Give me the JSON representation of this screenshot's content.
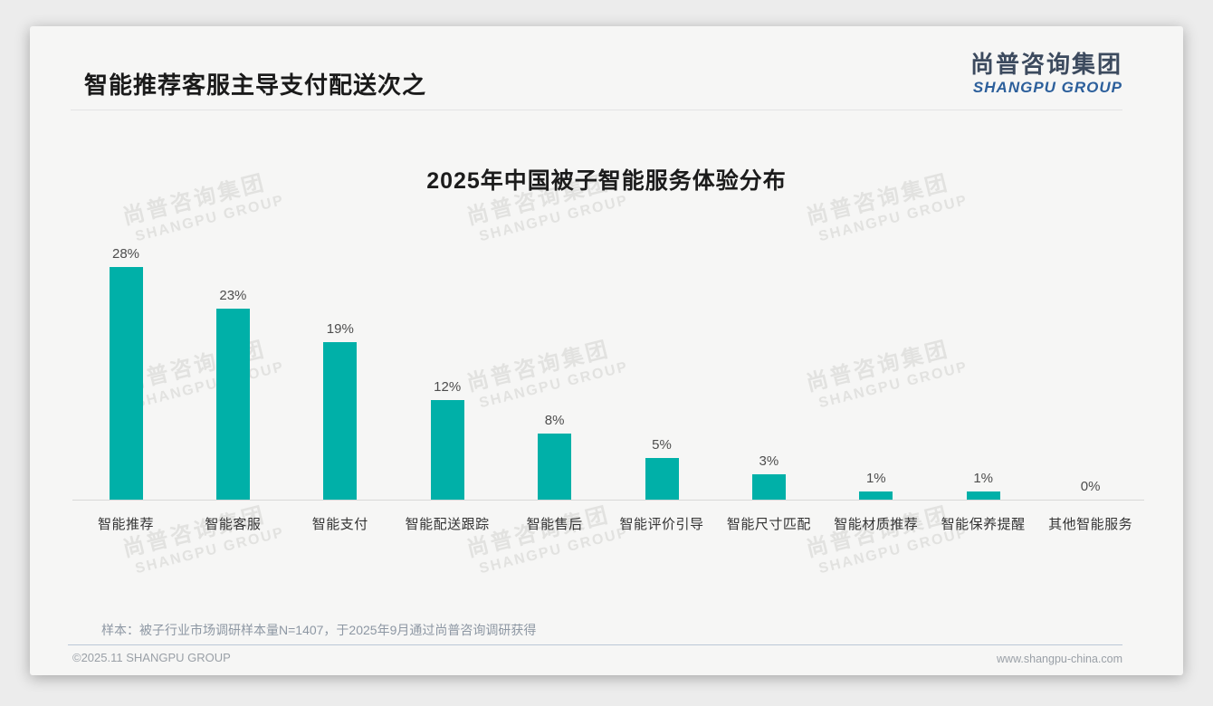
{
  "page": {
    "title": "智能推荐客服主导支付配送次之",
    "logo": {
      "cn": "尚普咨询集团",
      "en": "SHANGPU GROUP"
    },
    "watermark": {
      "cn": "尚普咨询集团",
      "en": "SHANGPU GROUP"
    },
    "sample_note": "样本：被子行业市场调研样本量N=1407，于2025年9月通过尚普咨询调研获得",
    "footer": {
      "left": "©2025.11 SHANGPU GROUP",
      "right": "www.shangpu-china.com"
    }
  },
  "chart_data": {
    "type": "bar",
    "title": "2025年中国被子智能服务体验分布",
    "categories": [
      "智能推荐",
      "智能客服",
      "智能支付",
      "智能配送跟踪",
      "智能售后",
      "智能评价引导",
      "智能尺寸匹配",
      "智能材质推荐",
      "智能保养提醒",
      "其他智能服务"
    ],
    "values": [
      28,
      23,
      19,
      12,
      8,
      5,
      3,
      1,
      1,
      0
    ],
    "value_labels": [
      "28%",
      "23%",
      "19%",
      "12%",
      "8%",
      "5%",
      "3%",
      "1%",
      "1%",
      "0%"
    ],
    "unit": "%",
    "bar_color": "#00b0a8",
    "ylim": [
      0,
      30
    ],
    "grid": false,
    "legend_position": "none",
    "xlabel": "",
    "ylabel": ""
  }
}
